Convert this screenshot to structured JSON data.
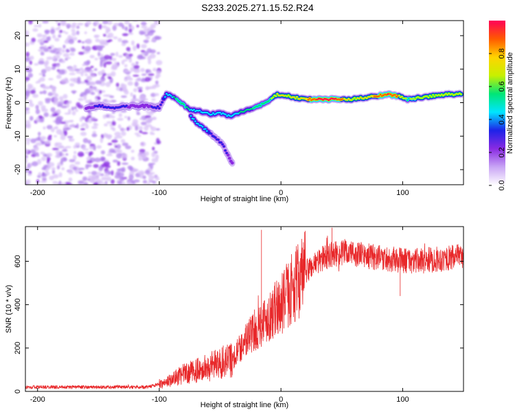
{
  "title": "S233.2025.271.15.52.R24",
  "colors": {
    "snr_line": "#e8282a",
    "background": "#ffffff",
    "axis": "#000000"
  },
  "chart_data": [
    {
      "type": "heatmap",
      "name": "spectrogram",
      "xlabel": "Height of straight line (km)",
      "ylabel": "Frequency (Hz)",
      "xlim": [
        -210,
        150
      ],
      "ylim": [
        -24.5,
        24.5
      ],
      "xticks": [
        -200,
        -100,
        0,
        100
      ],
      "yticks": [
        -20,
        -10,
        0,
        10,
        20
      ],
      "colorbar": {
        "label": "Normalized spectral amplitude",
        "range": [
          0,
          1
        ],
        "ticks": [
          "0.0",
          "0.2",
          "0.4",
          "0.6",
          "0.8"
        ],
        "colors": [
          "#ffffff",
          "#c9a6f5",
          "#8a2be2",
          "#1e22e8",
          "#00e5ff",
          "#00e676",
          "#c8f000",
          "#ffd400",
          "#ff5a00",
          "#ff0058"
        ]
      },
      "noise_region_x": [
        -210,
        -100
      ],
      "main_trace": [
        {
          "x": -160,
          "y": -1.5,
          "amp": 0.25
        },
        {
          "x": -148,
          "y": -1.0,
          "amp": 0.3
        },
        {
          "x": -138,
          "y": -1.5,
          "amp": 0.35
        },
        {
          "x": -122,
          "y": -1.0,
          "amp": 0.25
        },
        {
          "x": -110,
          "y": -1.0,
          "amp": 0.25
        },
        {
          "x": -100,
          "y": -1.5,
          "amp": 0.35
        },
        {
          "x": -94,
          "y": 2.5,
          "amp": 0.4
        },
        {
          "x": -88,
          "y": 1.5,
          "amp": 0.5
        },
        {
          "x": -82,
          "y": 0.0,
          "amp": 0.55
        },
        {
          "x": -76,
          "y": -2.0,
          "amp": 0.5
        },
        {
          "x": -68,
          "y": -2.5,
          "amp": 0.4
        },
        {
          "x": -58,
          "y": -3.5,
          "amp": 0.45
        },
        {
          "x": -50,
          "y": -3.0,
          "amp": 0.45
        },
        {
          "x": -42,
          "y": -4.0,
          "amp": 0.45
        },
        {
          "x": -34,
          "y": -3.0,
          "amp": 0.5
        },
        {
          "x": -26,
          "y": -2.0,
          "amp": 0.5
        },
        {
          "x": -18,
          "y": -1.0,
          "amp": 0.55
        },
        {
          "x": -10,
          "y": 0.5,
          "amp": 0.55
        },
        {
          "x": -3,
          "y": 2.5,
          "amp": 0.8
        },
        {
          "x": 5,
          "y": 2.0,
          "amp": 0.7
        },
        {
          "x": 12,
          "y": 1.5,
          "amp": 0.75
        },
        {
          "x": 20,
          "y": 1.0,
          "amp": 0.8
        },
        {
          "x": 30,
          "y": 1.0,
          "amp": 0.95
        },
        {
          "x": 45,
          "y": 1.0,
          "amp": 0.95
        },
        {
          "x": 58,
          "y": 1.0,
          "amp": 0.7
        },
        {
          "x": 68,
          "y": 1.5,
          "amp": 0.75
        },
        {
          "x": 78,
          "y": 2.0,
          "amp": 0.85
        },
        {
          "x": 88,
          "y": 2.5,
          "amp": 0.95
        },
        {
          "x": 96,
          "y": 2.0,
          "amp": 0.85
        },
        {
          "x": 104,
          "y": 1.0,
          "amp": 0.6
        },
        {
          "x": 115,
          "y": 1.5,
          "amp": 0.7
        },
        {
          "x": 125,
          "y": 2.0,
          "amp": 0.7
        },
        {
          "x": 138,
          "y": 2.5,
          "amp": 0.7
        },
        {
          "x": 148,
          "y": 2.5,
          "amp": 0.7
        }
      ],
      "branch_trace": [
        {
          "x": -74,
          "y": -4.0,
          "amp": 0.4
        },
        {
          "x": -68,
          "y": -6.5,
          "amp": 0.45
        },
        {
          "x": -62,
          "y": -8.0,
          "amp": 0.4
        },
        {
          "x": -55,
          "y": -10.0,
          "amp": 0.35
        },
        {
          "x": -48,
          "y": -12.5,
          "amp": 0.3
        },
        {
          "x": -40,
          "y": -18.0,
          "amp": 0.25
        }
      ]
    },
    {
      "type": "line",
      "name": "snr",
      "xlabel": "Height of straight line (km)",
      "ylabel": "SNR (10 * v/v)",
      "xlim": [
        -210,
        150
      ],
      "ylim": [
        0,
        760
      ],
      "xticks": [
        -200,
        -100,
        0,
        100
      ],
      "yticks": [
        0,
        200,
        400,
        600
      ],
      "series": [
        {
          "name": "SNR",
          "envelope": [
            {
              "x": -210,
              "y": 20
            },
            {
              "x": -150,
              "y": 20
            },
            {
              "x": -110,
              "y": 20
            },
            {
              "x": -95,
              "y": 40
            },
            {
              "x": -80,
              "y": 80
            },
            {
              "x": -60,
              "y": 110
            },
            {
              "x": -40,
              "y": 150
            },
            {
              "x": -30,
              "y": 230
            },
            {
              "x": -20,
              "y": 290
            },
            {
              "x": -10,
              "y": 350
            },
            {
              "x": 0,
              "y": 400
            },
            {
              "x": 10,
              "y": 480
            },
            {
              "x": 20,
              "y": 550
            },
            {
              "x": 30,
              "y": 600
            },
            {
              "x": 40,
              "y": 630
            },
            {
              "x": 55,
              "y": 640
            },
            {
              "x": 70,
              "y": 625
            },
            {
              "x": 90,
              "y": 610
            },
            {
              "x": 110,
              "y": 600
            },
            {
              "x": 130,
              "y": 610
            },
            {
              "x": 150,
              "y": 620
            }
          ],
          "spikes": [
            {
              "x": -16,
              "y": 745
            },
            {
              "x": 42,
              "y": 755
            },
            {
              "x": 98,
              "y": 440
            }
          ]
        }
      ]
    }
  ]
}
